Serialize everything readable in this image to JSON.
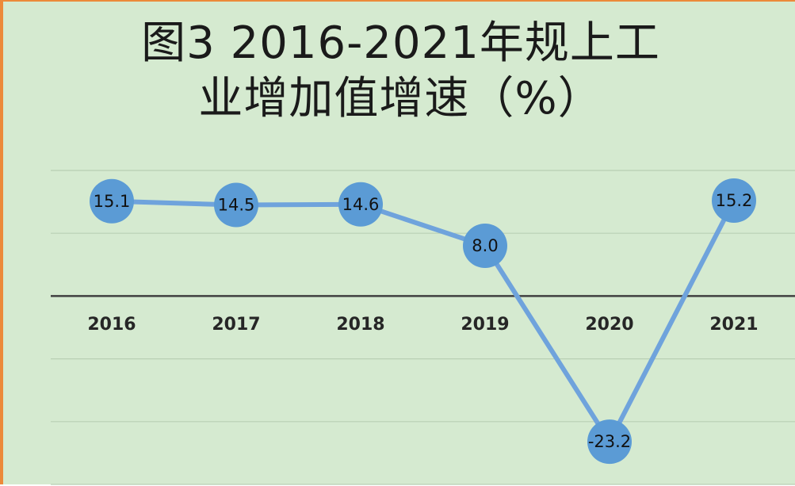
{
  "chart_data": {
    "type": "line",
    "title": "图3  2016-2021年规上工\n业增加值增速（%）",
    "categories": [
      "2016",
      "2017",
      "2018",
      "2019",
      "2020",
      "2021"
    ],
    "values": [
      15.1,
      14.5,
      14.6,
      8.0,
      -23.2,
      15.2
    ],
    "value_labels": [
      "15.1",
      "14.5",
      "14.6",
      "8.0",
      "-23.2",
      "15.2"
    ],
    "color": "#5b9bd5",
    "ylim": [
      -30,
      20
    ],
    "yticks": [
      -30,
      -20,
      -10,
      0,
      10,
      20
    ],
    "grid": true
  }
}
